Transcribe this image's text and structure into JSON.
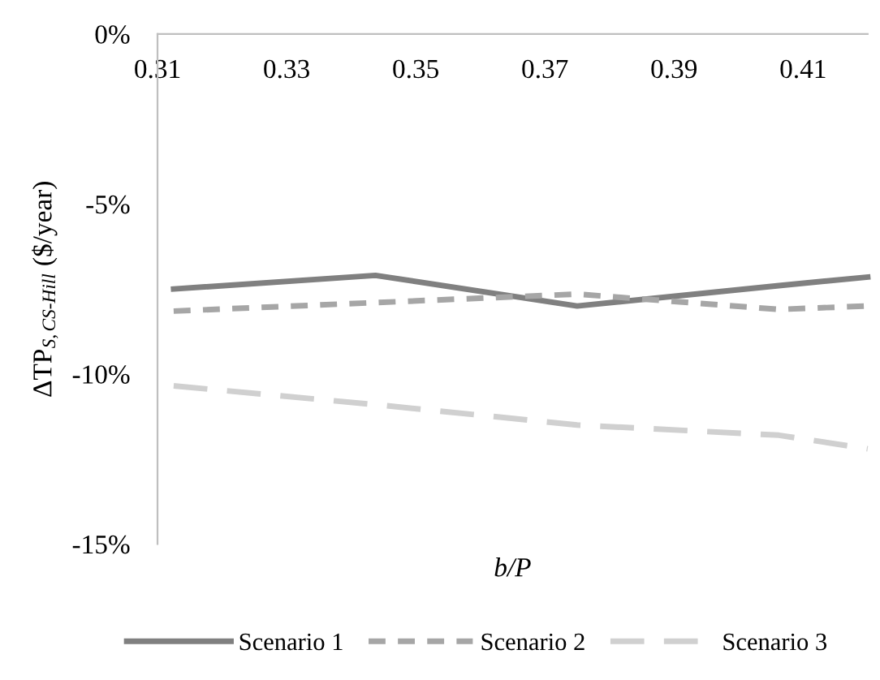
{
  "chart_data": {
    "type": "line",
    "xlabel": "b/P",
    "ylabel": "ΔTP$_{S,CS-Hill}$ ($/year)",
    "x": [
      0.3125,
      0.34375,
      0.375,
      0.40625,
      0.42
    ],
    "xlim": [
      0.31,
      0.42
    ],
    "xticks": [
      0.31,
      0.33,
      0.35,
      0.37,
      0.39,
      0.41
    ],
    "ylim": [
      -15,
      0
    ],
    "yticks": [
      {
        "value": 0,
        "label": "0%"
      },
      {
        "value": -5,
        "label": "-5%"
      },
      {
        "value": -10,
        "label": "-10%"
      },
      {
        "value": -15,
        "label": "-15%"
      }
    ],
    "grid": false,
    "legend": "bottom",
    "marker": "none",
    "series": [
      {
        "name": "Scenario 1",
        "color": "#808080",
        "line_style": "solid",
        "values": [
          -7.5,
          -7.1,
          -8.0,
          -7.4,
          -7.15
        ]
      },
      {
        "name": "Scenario 2",
        "color": "#a6a6a6",
        "line_style": "dashed",
        "values": [
          -8.15,
          -7.9,
          -7.65,
          -8.1,
          -8.0
        ]
      },
      {
        "name": "Scenario 3",
        "color": "#d0d0d0",
        "line_style": "longdash",
        "values": [
          -10.35,
          -10.9,
          -11.5,
          -11.8,
          -12.2
        ]
      }
    ]
  }
}
